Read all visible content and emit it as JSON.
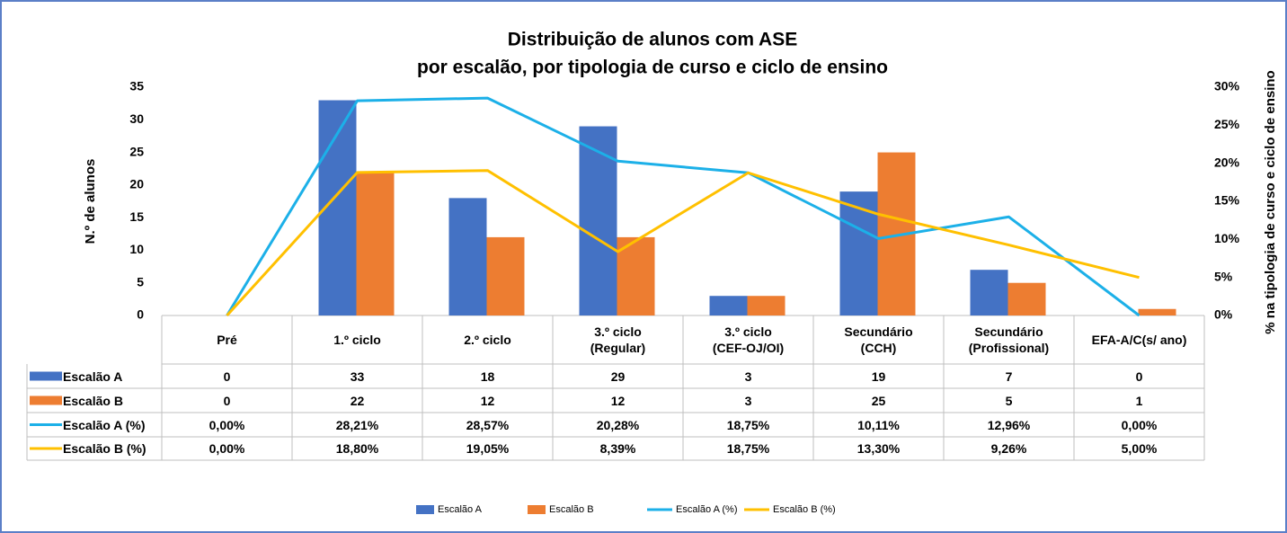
{
  "chart_data": {
    "type": "bar",
    "title": "Distribuição de alunos com ASE",
    "subtitle": "por escalão, por tipologia de curso e ciclo de ensino",
    "y_label": "N.º de alunos",
    "y2_label": "% na tipologia de curso e ciclo de ensino",
    "categories": [
      "Pré",
      "1.º ciclo",
      "2.º ciclo",
      "3.º ciclo\n(Regular)",
      "3.º ciclo\n(CEF-OJ/OI)",
      "Secundário\n(CCH)",
      "Secundário\n(Profissional)",
      "EFA-A/C(s/ ano)"
    ],
    "ylim": [
      0,
      35
    ],
    "yticks": [
      0,
      5,
      10,
      15,
      20,
      25,
      30,
      35
    ],
    "y2lim": [
      0,
      30
    ],
    "y2ticks": [
      {
        "value": 0,
        "label": "0%"
      },
      {
        "value": 5,
        "label": "5%"
      },
      {
        "value": 10,
        "label": "10%"
      },
      {
        "value": 15,
        "label": "15%"
      },
      {
        "value": 20,
        "label": "20%"
      },
      {
        "value": 25,
        "label": "25%"
      },
      {
        "value": 30,
        "label": "30%"
      }
    ],
    "grid": false,
    "series": [
      {
        "name": "Escalão A",
        "type": "bar",
        "color": "#4472c4",
        "values": [
          0,
          33,
          18,
          29,
          3,
          19,
          7,
          0
        ]
      },
      {
        "name": "Escalão B",
        "type": "bar",
        "color": "#ed7d31",
        "values": [
          0,
          22,
          12,
          12,
          3,
          25,
          5,
          1
        ]
      },
      {
        "name": "Escalão A (%)",
        "type": "line",
        "axis": "y2",
        "color": "#1cb0e8",
        "values": [
          0,
          28.21,
          28.57,
          20.28,
          18.75,
          10.11,
          12.96,
          0
        ],
        "value_labels": [
          "0,00%",
          "28,21%",
          "28,57%",
          "20,28%",
          "18,75%",
          "10,11%",
          "12,96%",
          "0,00%"
        ]
      },
      {
        "name": "Escalão B (%)",
        "type": "line",
        "axis": "y2",
        "color": "#ffc000",
        "values": [
          0,
          18.8,
          19.05,
          8.39,
          18.75,
          13.3,
          9.26,
          5.0
        ],
        "value_labels": [
          "0,00%",
          "18,80%",
          "19,05%",
          "8,39%",
          "18,75%",
          "13,30%",
          "9,26%",
          "5,00%"
        ]
      }
    ]
  }
}
